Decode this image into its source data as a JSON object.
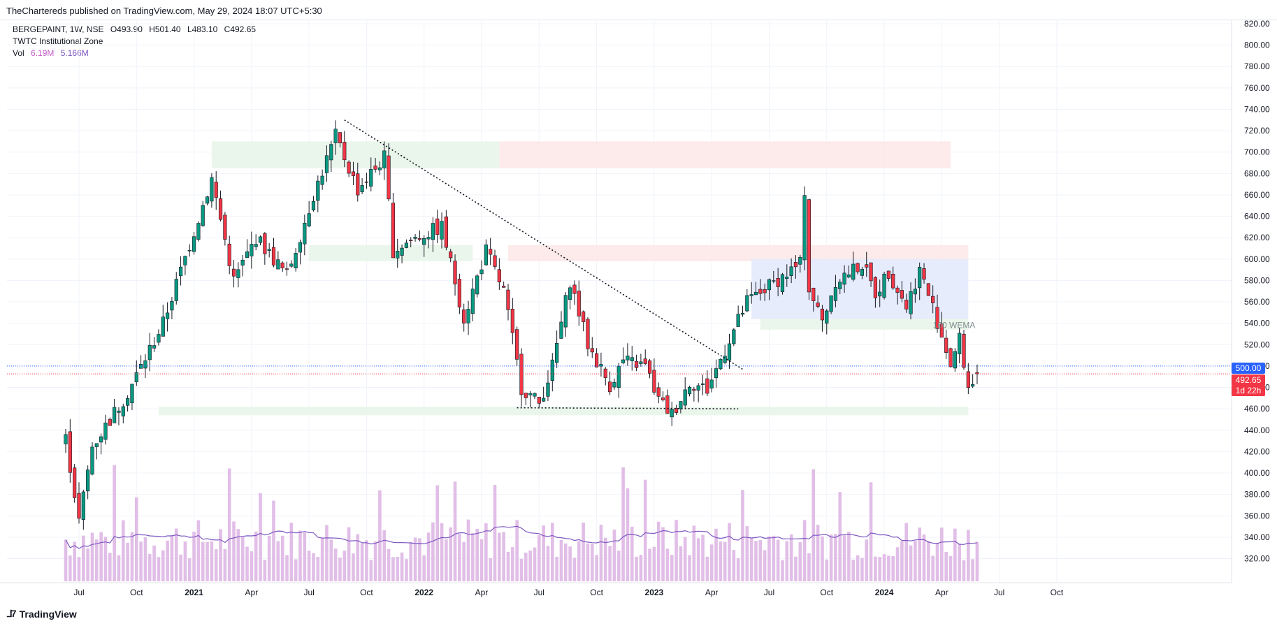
{
  "header": {
    "publish_text": "TheChartereds published on TradingView.com, May 29, 2024 18:07 UTC+5:30"
  },
  "legend": {
    "symbol_line": "BERGEPAINT, 1W, NSE",
    "open": "O493.90",
    "high": "H501.40",
    "low": "L483.10",
    "close": "C492.65",
    "indicator": "TWTC Institutional Zone",
    "vol_label": "Vol",
    "vol_value": "6.19M",
    "vol_ma": "5.166M"
  },
  "price_tags": {
    "level_500": "500.00",
    "last_price": "492.65",
    "countdown": "1d 22h"
  },
  "annotation": "100 WEMA",
  "brand": "TradingView",
  "colors": {
    "up": "#089981",
    "down": "#f23645",
    "volume": "#e1bee7",
    "vol_ma": "#7e57c2",
    "demand_zone": "#e8f5e9",
    "supply_zone": "#fde8e8",
    "range_box": "#e3eafc",
    "blue_tag": "#2962ff",
    "red_tag": "#f23645"
  },
  "chart_data": {
    "type": "candlestick",
    "timeframe": "1W",
    "y_axis": {
      "range": [
        305,
        830
      ],
      "ticks": [
        "820.00",
        "800.00",
        "780.00",
        "760.00",
        "740.00",
        "720.00",
        "700.00",
        "680.00",
        "660.00",
        "640.00",
        "620.00",
        "600.00",
        "580.00",
        "560.00",
        "540.00",
        "520.00",
        "500.00",
        "480.00",
        "460.00",
        "440.00",
        "420.00",
        "400.00",
        "380.00",
        "360.00",
        "340.00",
        "320.00"
      ]
    },
    "x_axis": {
      "labels": [
        "Jul",
        "Oct",
        "2021",
        "Apr",
        "Jul",
        "Oct",
        "2022",
        "Apr",
        "Jul",
        "Oct",
        "2023",
        "Apr",
        "Jul",
        "Oct",
        "2024",
        "Apr",
        "Jul",
        "Oct"
      ],
      "bold": [
        "2021",
        "2022",
        "2023",
        "2024"
      ],
      "label_weeks": [
        3,
        16,
        29,
        42,
        55,
        68,
        81,
        94,
        107,
        120,
        133,
        146,
        159,
        172,
        185,
        198,
        211,
        224
      ]
    },
    "key_points": [
      {
        "week": 0,
        "price": 432
      },
      {
        "week": 3,
        "price": 355
      },
      {
        "week": 6,
        "price": 425
      },
      {
        "week": 14,
        "price": 475
      },
      {
        "week": 22,
        "price": 540
      },
      {
        "week": 33,
        "price": 675
      },
      {
        "week": 38,
        "price": 580
      },
      {
        "week": 43,
        "price": 620
      },
      {
        "week": 50,
        "price": 585
      },
      {
        "week": 56,
        "price": 660
      },
      {
        "week": 61,
        "price": 715
      },
      {
        "week": 66,
        "price": 665
      },
      {
        "week": 72,
        "price": 695
      },
      {
        "week": 74,
        "price": 608
      },
      {
        "week": 79,
        "price": 620
      },
      {
        "week": 85,
        "price": 630
      },
      {
        "week": 90,
        "price": 545
      },
      {
        "week": 95,
        "price": 608
      },
      {
        "week": 99,
        "price": 570
      },
      {
        "week": 103,
        "price": 480
      },
      {
        "week": 107,
        "price": 465
      },
      {
        "week": 110,
        "price": 500
      },
      {
        "week": 114,
        "price": 580
      },
      {
        "week": 118,
        "price": 520
      },
      {
        "week": 123,
        "price": 482
      },
      {
        "week": 126,
        "price": 505
      },
      {
        "week": 131,
        "price": 500
      },
      {
        "week": 134,
        "price": 468
      },
      {
        "week": 137,
        "price": 455
      },
      {
        "week": 141,
        "price": 485
      },
      {
        "week": 145,
        "price": 478
      },
      {
        "week": 150,
        "price": 525
      },
      {
        "week": 154,
        "price": 560
      },
      {
        "week": 160,
        "price": 578
      },
      {
        "week": 166,
        "price": 595
      },
      {
        "week": 167,
        "price": 665
      },
      {
        "week": 168,
        "price": 572
      },
      {
        "week": 171,
        "price": 542
      },
      {
        "week": 174,
        "price": 580
      },
      {
        "week": 180,
        "price": 595
      },
      {
        "week": 183,
        "price": 568
      },
      {
        "week": 186,
        "price": 588
      },
      {
        "week": 190,
        "price": 556
      },
      {
        "week": 193,
        "price": 590
      },
      {
        "week": 196,
        "price": 555
      },
      {
        "week": 200,
        "price": 502
      },
      {
        "week": 202,
        "price": 525
      },
      {
        "week": 204,
        "price": 480
      },
      {
        "week": 206,
        "price": 492.65
      }
    ],
    "last_candle": {
      "open": 493.9,
      "high": 501.4,
      "low": 483.1,
      "close": 492.65
    },
    "zones": [
      {
        "kind": "demand",
        "week_from": 33,
        "week_to": 98,
        "price_from": 685,
        "price_to": 710
      },
      {
        "kind": "supply",
        "week_from": 98,
        "week_to": 200,
        "price_from": 685,
        "price_to": 710
      },
      {
        "kind": "demand",
        "week_from": 55,
        "week_to": 92,
        "price_from": 598,
        "price_to": 613
      },
      {
        "kind": "supply",
        "week_from": 100,
        "week_to": 204,
        "price_from": 598,
        "price_to": 613
      },
      {
        "kind": "range",
        "week_from": 155,
        "week_to": 204,
        "price_from": 544,
        "price_to": 600
      },
      {
        "kind": "demand",
        "week_from": 157,
        "week_to": 204,
        "price_from": 534,
        "price_to": 544
      },
      {
        "kind": "demand",
        "week_from": 21,
        "week_to": 204,
        "price_from": 454,
        "price_to": 462
      }
    ],
    "trendlines": [
      {
        "from": [
          63,
          730
        ],
        "to": [
          153,
          497
        ]
      },
      {
        "from": [
          102,
          461
        ],
        "to": [
          152,
          460
        ]
      }
    ],
    "horizontal_levels": [
      {
        "price": 500.0,
        "color": "#2962ff"
      },
      {
        "price": 492.65,
        "color": "#f23645"
      }
    ]
  }
}
